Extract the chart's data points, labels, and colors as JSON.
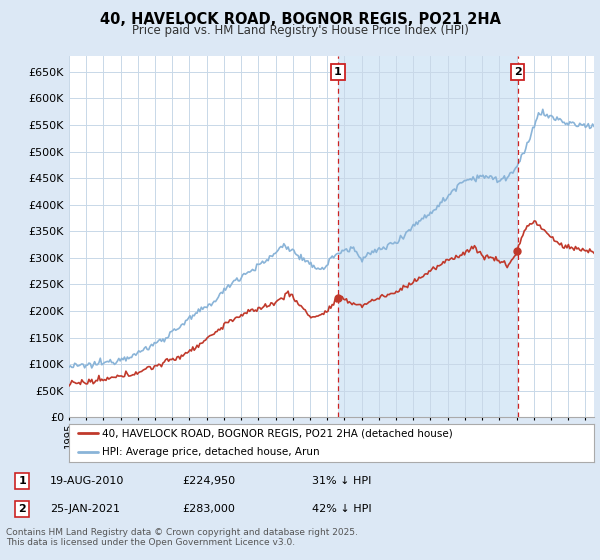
{
  "title": "40, HAVELOCK ROAD, BOGNOR REGIS, PO21 2HA",
  "subtitle": "Price paid vs. HM Land Registry's House Price Index (HPI)",
  "hpi_color": "#8ab4d8",
  "price_paid_color": "#c0392b",
  "background_color": "#dce8f5",
  "plot_bg_color": "#ffffff",
  "shade_color": "#daeaf7",
  "ylim": [
    0,
    680000
  ],
  "yticks": [
    0,
    50000,
    100000,
    150000,
    200000,
    250000,
    300000,
    350000,
    400000,
    450000,
    500000,
    550000,
    600000,
    650000
  ],
  "sale1_date_x": 2010.63,
  "sale1_price": 224950,
  "sale1_label": "1",
  "sale2_date_x": 2021.07,
  "sale2_price": 283000,
  "sale2_label": "2",
  "legend_pp": "40, HAVELOCK ROAD, BOGNOR REGIS, PO21 2HA (detached house)",
  "legend_hpi": "HPI: Average price, detached house, Arun",
  "footer": "Contains HM Land Registry data © Crown copyright and database right 2025.\nThis data is licensed under the Open Government Licence v3.0.",
  "xmin": 1995,
  "xmax": 2025.5
}
